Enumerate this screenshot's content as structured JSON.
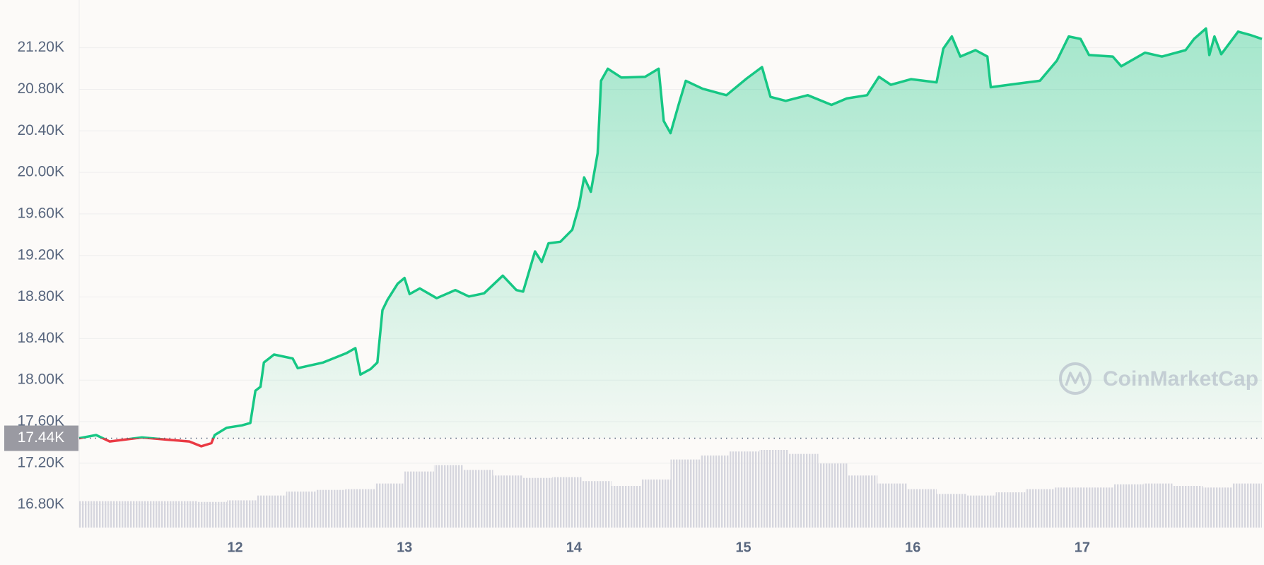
{
  "chart_data": {
    "type": "line",
    "x": [
      11.08,
      11.18,
      11.26,
      11.45,
      11.61,
      11.73,
      11.8,
      11.86,
      11.88,
      11.95,
      12.04,
      12.09,
      12.12,
      12.15,
      12.17,
      12.23,
      12.34,
      12.37,
      12.52,
      12.66,
      12.71,
      12.74,
      12.8,
      12.84,
      12.87,
      12.9,
      12.96,
      13.0,
      13.03,
      13.09,
      13.19,
      13.3,
      13.38,
      13.47,
      13.58,
      13.66,
      13.7,
      13.77,
      13.81,
      13.85,
      13.92,
      13.99,
      14.03,
      14.06,
      14.1,
      14.14,
      14.16,
      14.2,
      14.28,
      14.42,
      14.5,
      14.53,
      14.57,
      14.62,
      14.66,
      14.76,
      14.9,
      15.02,
      15.11,
      15.16,
      15.25,
      15.38,
      15.52,
      15.61,
      15.73,
      15.8,
      15.87,
      15.99,
      16.14,
      16.18,
      16.23,
      16.28,
      16.37,
      16.44,
      16.46,
      16.6,
      16.75,
      16.85,
      16.92,
      16.99,
      17.04,
      17.18,
      17.23,
      17.37,
      17.47,
      17.61,
      17.66,
      17.73,
      17.75,
      17.78,
      17.82,
      17.92,
      17.99,
      18.06
    ],
    "series": [
      {
        "color": "#16c784",
        "below_color": "#ea3943",
        "values": [
          17440,
          17471,
          17409,
          17448,
          17425,
          17409,
          17363,
          17393,
          17471,
          17541,
          17564,
          17587,
          17898,
          17936,
          18169,
          18246,
          18208,
          18115,
          18169,
          18262,
          18308,
          18053,
          18107,
          18169,
          18673,
          18774,
          18929,
          18983,
          18828,
          18883,
          18789,
          18867,
          18805,
          18836,
          19006,
          18867,
          18852,
          19239,
          19138,
          19317,
          19332,
          19448,
          19681,
          19952,
          19813,
          20185,
          20882,
          20998,
          20913,
          20921,
          20998,
          20495,
          20378,
          20665,
          20882,
          20805,
          20743,
          20905,
          21014,
          20727,
          20689,
          20743,
          20650,
          20712,
          20743,
          20921,
          20844,
          20898,
          20867,
          21192,
          21309,
          21115,
          21177,
          21115,
          20820,
          20851,
          20882,
          21076,
          21309,
          21285,
          21130,
          21115,
          21022,
          21153,
          21115,
          21177,
          21285,
          21386,
          21130,
          21309,
          21138,
          21355,
          21324,
          21285
        ]
      }
    ],
    "volume": {
      "color": "#d6d6de",
      "values": [
        33,
        33,
        33,
        33,
        32,
        34,
        40,
        45,
        47,
        48,
        55,
        70,
        78,
        72,
        65,
        62,
        63,
        58,
        52,
        60,
        85,
        90,
        95,
        97,
        92,
        80,
        65,
        55,
        48,
        42,
        40,
        44,
        48,
        50,
        50,
        54,
        55,
        52,
        50,
        55
      ]
    },
    "baseline": {
      "value": 17440,
      "label": "17.44K"
    },
    "watermark": "CoinMarketCap",
    "xlim": [
      11.08,
      18.06
    ],
    "xticks": [
      12,
      13,
      14,
      15,
      16,
      17
    ],
    "ylim": [
      16580,
      21660
    ],
    "yticks": [
      {
        "value": 16800,
        "label": "16.80K"
      },
      {
        "value": 17200,
        "label": "17.20K"
      },
      {
        "value": 17600,
        "label": "17.60K"
      },
      {
        "value": 18000,
        "label": "18.00K"
      },
      {
        "value": 18400,
        "label": "18.40K"
      },
      {
        "value": 18800,
        "label": "18.80K"
      },
      {
        "value": 19200,
        "label": "19.20K"
      },
      {
        "value": 19600,
        "label": "19.60K"
      },
      {
        "value": 20000,
        "label": "20.00K"
      },
      {
        "value": 20400,
        "label": "20.40K"
      },
      {
        "value": 20800,
        "label": "20.80K"
      },
      {
        "value": 21200,
        "label": "21.20K"
      }
    ],
    "grid": true
  }
}
